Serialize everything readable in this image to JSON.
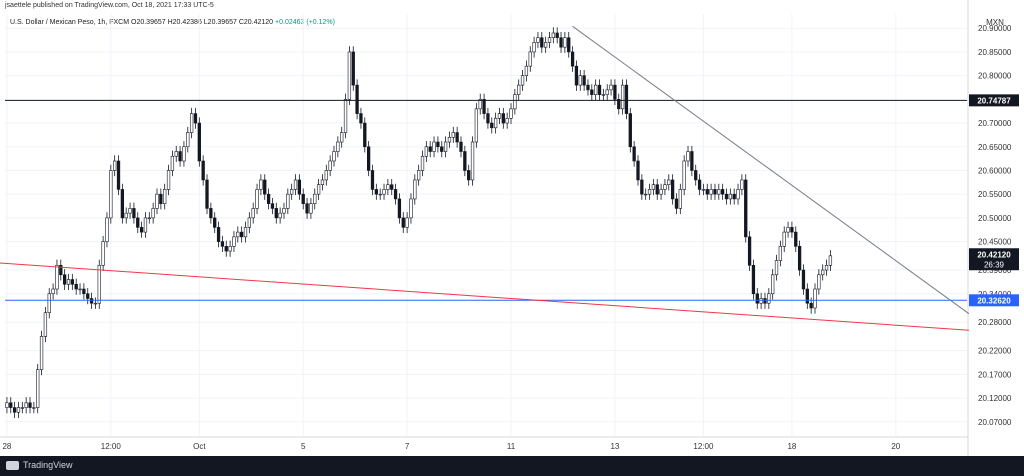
{
  "header": {
    "published": "jsaettele published on TradingView.com, Oct 18, 2021 17:33 UTC-5",
    "symbol": "U.S. Dollar / Mexican Peso, 1h, FXCM",
    "ohlc": "O20.39657 H20.42386 L20.39657 C20.42120",
    "change": "+0.02463 (+0.12%)"
  },
  "footer": {
    "brand": "TradingView"
  },
  "chart_data": {
    "type": "candlestick",
    "currency": "MXN",
    "ylim": [
      20.04,
      20.93
    ],
    "y_ticks": [
      20.07,
      20.12,
      20.17,
      20.22,
      20.28,
      20.34,
      20.39,
      20.45,
      20.5,
      20.55,
      20.6,
      20.65,
      20.7,
      20.8,
      20.85,
      20.9
    ],
    "y_tick_labels": [
      "20.07000",
      "20.12000",
      "20.17000",
      "20.22000",
      "20.28000",
      "20.34000",
      "20.39000",
      "20.45000",
      "20.50000",
      "20.55000",
      "20.60000",
      "20.65000",
      "20.70000",
      "20.80000",
      "20.85000",
      "20.90000"
    ],
    "x_ticks": [
      {
        "bar": 0,
        "label": "28"
      },
      {
        "bar": 27,
        "label": "12:00"
      },
      {
        "bar": 50,
        "label": "Oct"
      },
      {
        "bar": 77,
        "label": "5"
      },
      {
        "bar": 104,
        "label": "7"
      },
      {
        "bar": 131,
        "label": "11"
      },
      {
        "bar": 158,
        "label": "13"
      },
      {
        "bar": 181,
        "label": "12:00"
      },
      {
        "bar": 204,
        "label": "18"
      },
      {
        "bar": 231,
        "label": "20"
      }
    ],
    "bar_count_view": 250,
    "price_levels": [
      {
        "name": "resistance",
        "value": 20.74787,
        "label": "20.74787",
        "color": "#131722"
      },
      {
        "name": "support",
        "value": 20.3262,
        "label": "20.32620",
        "color": "#2962ff"
      }
    ],
    "last_price": {
      "label": "20.42120",
      "value": 20.4212,
      "countdown": "26:39",
      "color": "#131722"
    },
    "trendlines": [
      {
        "name": "trendline-red",
        "color": "#f23645",
        "from": {
          "bar": -2,
          "price": 20.405
        },
        "to": {
          "bar": 250,
          "price": 20.263
        }
      },
      {
        "name": "trendline-down",
        "color": "#787b86",
        "from": {
          "bar": 147,
          "price": 20.904
        },
        "to": {
          "bar": 250,
          "price": 20.298
        }
      }
    ],
    "close": [
      20.11,
      20.1,
      20.09,
      20.1,
      20.1,
      20.11,
      20.1,
      20.1,
      20.18,
      20.25,
      20.3,
      20.34,
      20.35,
      20.4,
      20.38,
      20.36,
      20.37,
      20.36,
      20.35,
      20.35,
      20.34,
      20.33,
      20.32,
      20.32,
      20.4,
      20.45,
      20.5,
      20.6,
      20.62,
      20.56,
      20.5,
      20.51,
      20.52,
      20.5,
      20.48,
      20.47,
      20.5,
      20.5,
      20.52,
      20.55,
      20.53,
      20.56,
      20.6,
      20.63,
      20.64,
      20.62,
      20.65,
      20.68,
      20.72,
      20.7,
      20.62,
      20.58,
      20.52,
      20.5,
      20.48,
      20.45,
      20.44,
      20.43,
      20.44,
      20.46,
      20.47,
      20.46,
      20.48,
      20.5,
      20.52,
      20.56,
      20.58,
      20.55,
      20.53,
      20.52,
      20.5,
      20.51,
      20.52,
      20.55,
      20.56,
      20.58,
      20.55,
      20.53,
      20.51,
      20.53,
      20.55,
      20.57,
      20.58,
      20.6,
      20.62,
      20.64,
      20.66,
      20.68,
      20.75,
      20.85,
      20.78,
      20.72,
      20.7,
      20.65,
      20.6,
      20.56,
      20.55,
      20.55,
      20.56,
      20.57,
      20.56,
      20.54,
      20.5,
      20.48,
      20.5,
      20.54,
      20.58,
      20.6,
      20.63,
      20.65,
      20.64,
      20.66,
      20.65,
      20.64,
      20.66,
      20.67,
      20.68,
      20.66,
      20.64,
      20.6,
      20.58,
      20.66,
      20.73,
      20.75,
      20.72,
      20.7,
      20.69,
      20.71,
      20.72,
      20.7,
      20.71,
      20.73,
      20.76,
      20.78,
      20.8,
      20.82,
      20.85,
      20.87,
      20.88,
      20.86,
      20.87,
      20.88,
      20.89,
      20.88,
      20.86,
      20.88,
      20.85,
      20.82,
      20.78,
      20.8,
      20.78,
      20.77,
      20.76,
      20.78,
      20.76,
      20.76,
      20.77,
      20.78,
      20.75,
      20.73,
      20.78,
      20.72,
      20.65,
      20.62,
      20.58,
      20.55,
      20.55,
      20.56,
      20.57,
      20.55,
      20.56,
      20.57,
      20.58,
      20.54,
      20.52,
      20.56,
      20.62,
      20.64,
      20.6,
      20.58,
      20.56,
      20.56,
      20.55,
      20.56,
      20.55,
      20.56,
      20.55,
      20.54,
      20.55,
      20.54,
      20.56,
      20.58,
      20.46,
      20.4,
      20.34,
      20.32,
      20.33,
      20.32,
      20.34,
      20.38,
      20.41,
      20.44,
      20.47,
      20.48,
      20.47,
      20.44,
      20.39,
      20.35,
      20.32,
      20.31,
      20.35,
      20.38,
      20.39,
      20.4,
      20.42
    ]
  }
}
